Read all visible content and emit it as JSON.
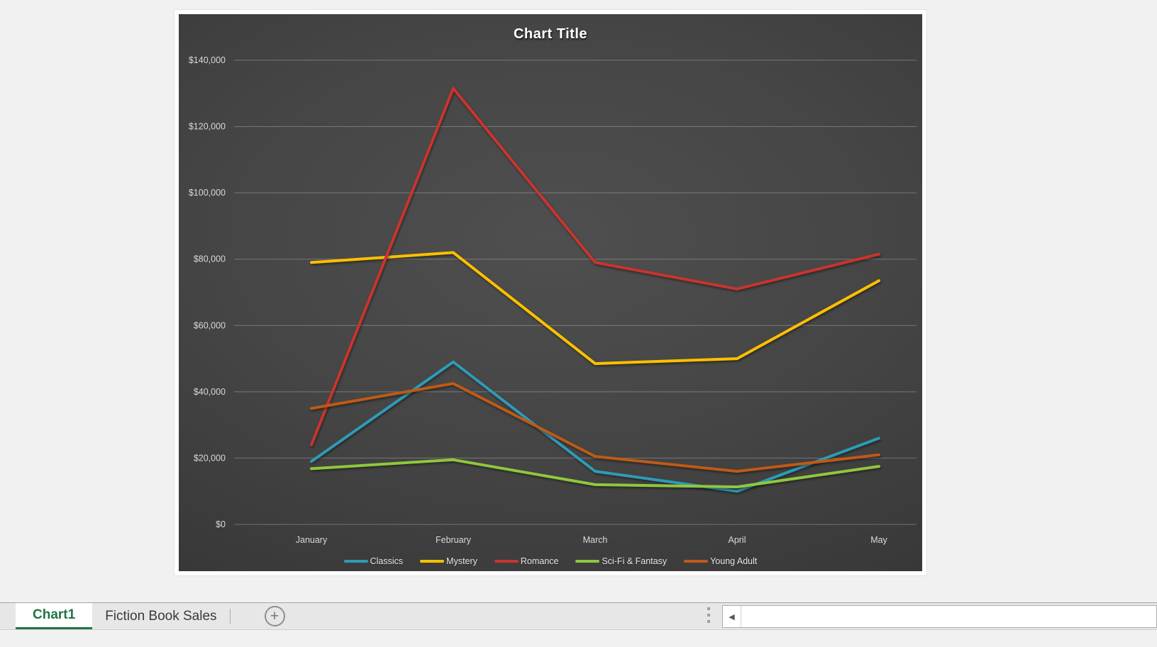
{
  "chart_data": {
    "type": "line",
    "title": "Chart Title",
    "categories": [
      "January",
      "February",
      "March",
      "April",
      "May"
    ],
    "series": [
      {
        "name": "Classics",
        "color": "#2E9BB5",
        "values": [
          19000,
          49000,
          16000,
          10000,
          26000
        ]
      },
      {
        "name": "Mystery",
        "color": "#FFC000",
        "values": [
          79000,
          82000,
          48500,
          50000,
          73500
        ]
      },
      {
        "name": "Romance",
        "color": "#C9342E",
        "values": [
          24000,
          131500,
          79000,
          71000,
          81500
        ]
      },
      {
        "name": "Sci-Fi & Fantasy",
        "color": "#8FC73E",
        "values": [
          16800,
          19500,
          12000,
          11300,
          17500
        ]
      },
      {
        "name": "Young Adult",
        "color": "#BE5A17",
        "values": [
          35000,
          42500,
          20500,
          16000,
          21000
        ]
      }
    ],
    "xlabel": "",
    "ylabel": "",
    "ylim": [
      0,
      140000
    ],
    "ytick_step": 20000,
    "ytick_labels": [
      "$0",
      "$20,000",
      "$40,000",
      "$60,000",
      "$80,000",
      "$100,000",
      "$120,000",
      "$140,000"
    ],
    "grid": true,
    "legend_position": "bottom",
    "background_theme": "dark",
    "gridline_color": "rgba(255,255,255,0.28)",
    "axis_text_color": "#d9d9d9"
  },
  "sheet_tabs": {
    "accent_color": "#217346",
    "tabs": [
      {
        "label": "Chart1",
        "active": true
      },
      {
        "label": "Fiction Book Sales",
        "active": false
      }
    ]
  },
  "icons": {
    "add_sheet": "+",
    "scroll_left_arrow": "◀"
  }
}
